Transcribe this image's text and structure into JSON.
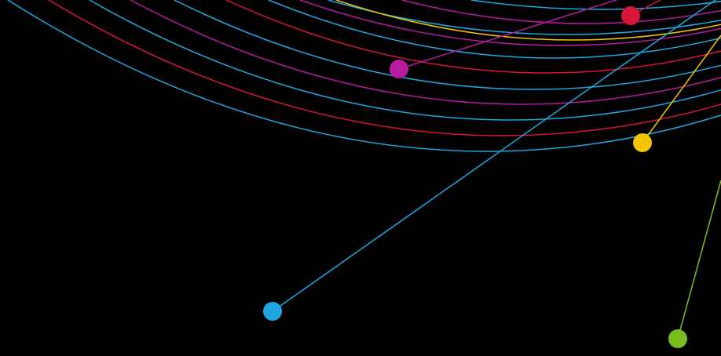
{
  "background_color": "#000000",
  "palette": {
    "blue": "#1ea7e1",
    "red": "#d8153a",
    "magenta": "#b81b9e",
    "yellow": "#f5c400",
    "green": "#7bbd1e"
  },
  "arcs": [
    {
      "color": "blue"
    },
    {
      "color": "red"
    },
    {
      "color": "blue"
    },
    {
      "color": "magenta"
    },
    {
      "color": "blue"
    },
    {
      "color": "red"
    },
    {
      "color": "blue"
    },
    {
      "color": "magenta"
    },
    {
      "color": "blue"
    },
    {
      "color": "blue"
    },
    {
      "color": "yellow"
    },
    {
      "color": "magenta"
    },
    {
      "color": "blue"
    }
  ],
  "connectors": [
    {
      "name": "blue-node",
      "color": "blue"
    },
    {
      "name": "magenta-node",
      "color": "magenta"
    },
    {
      "name": "red-node",
      "color": "red"
    },
    {
      "name": "yellow-node",
      "color": "yellow"
    },
    {
      "name": "green-node",
      "color": "green"
    }
  ]
}
